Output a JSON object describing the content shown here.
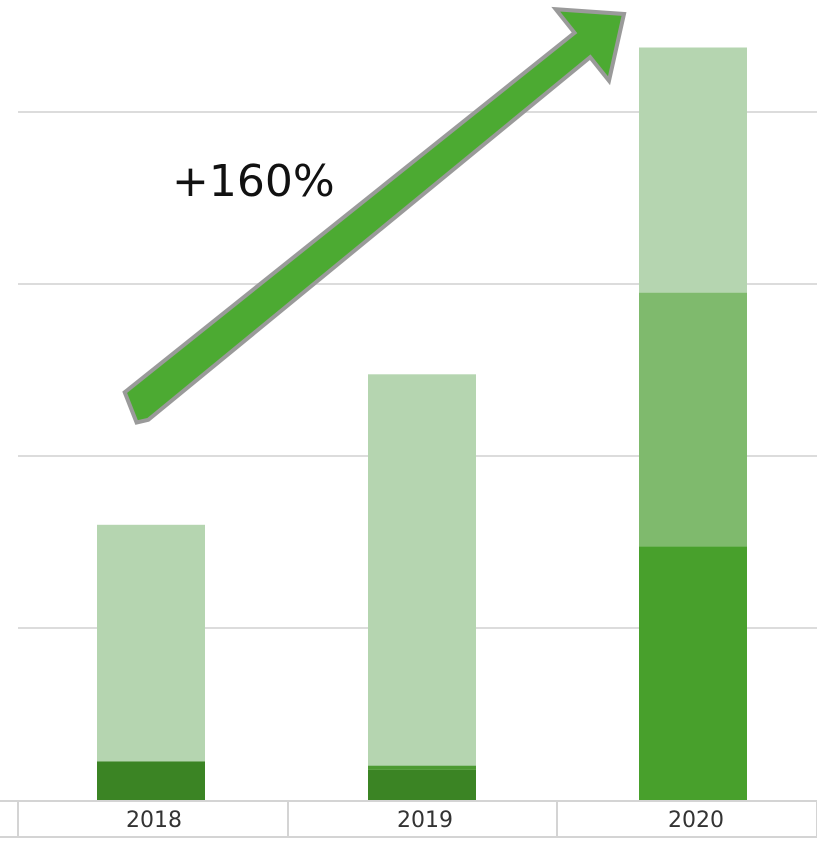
{
  "chart_data": {
    "type": "bar",
    "stacked": true,
    "categories": [
      "2018",
      "2019",
      "2020"
    ],
    "series": [
      {
        "values": [
          0.9,
          0.7,
          5.9
        ],
        "color": "#3b8424"
      },
      {
        "values": [
          0.0,
          0.1,
          0.0
        ],
        "color": "#4c9a32"
      },
      {
        "values": [
          0.0,
          0.0,
          5.9
        ],
        "color": "#7fba6d"
      },
      {
        "values": [
          5.5,
          9.1,
          5.7
        ],
        "color": "#b5d5b0"
      }
    ],
    "bottom_segment_colors": [
      "#3b8424",
      "#3b8424",
      "#48a02c"
    ],
    "ylim": [
      0,
      17
    ],
    "y_gridline_step": 4,
    "grid": true,
    "annotation": {
      "label": "+160%",
      "arrow_color": "#4caa32",
      "arrow_outline": "#9a9a9a"
    },
    "title": "",
    "xlabel": "",
    "ylabel": ""
  }
}
